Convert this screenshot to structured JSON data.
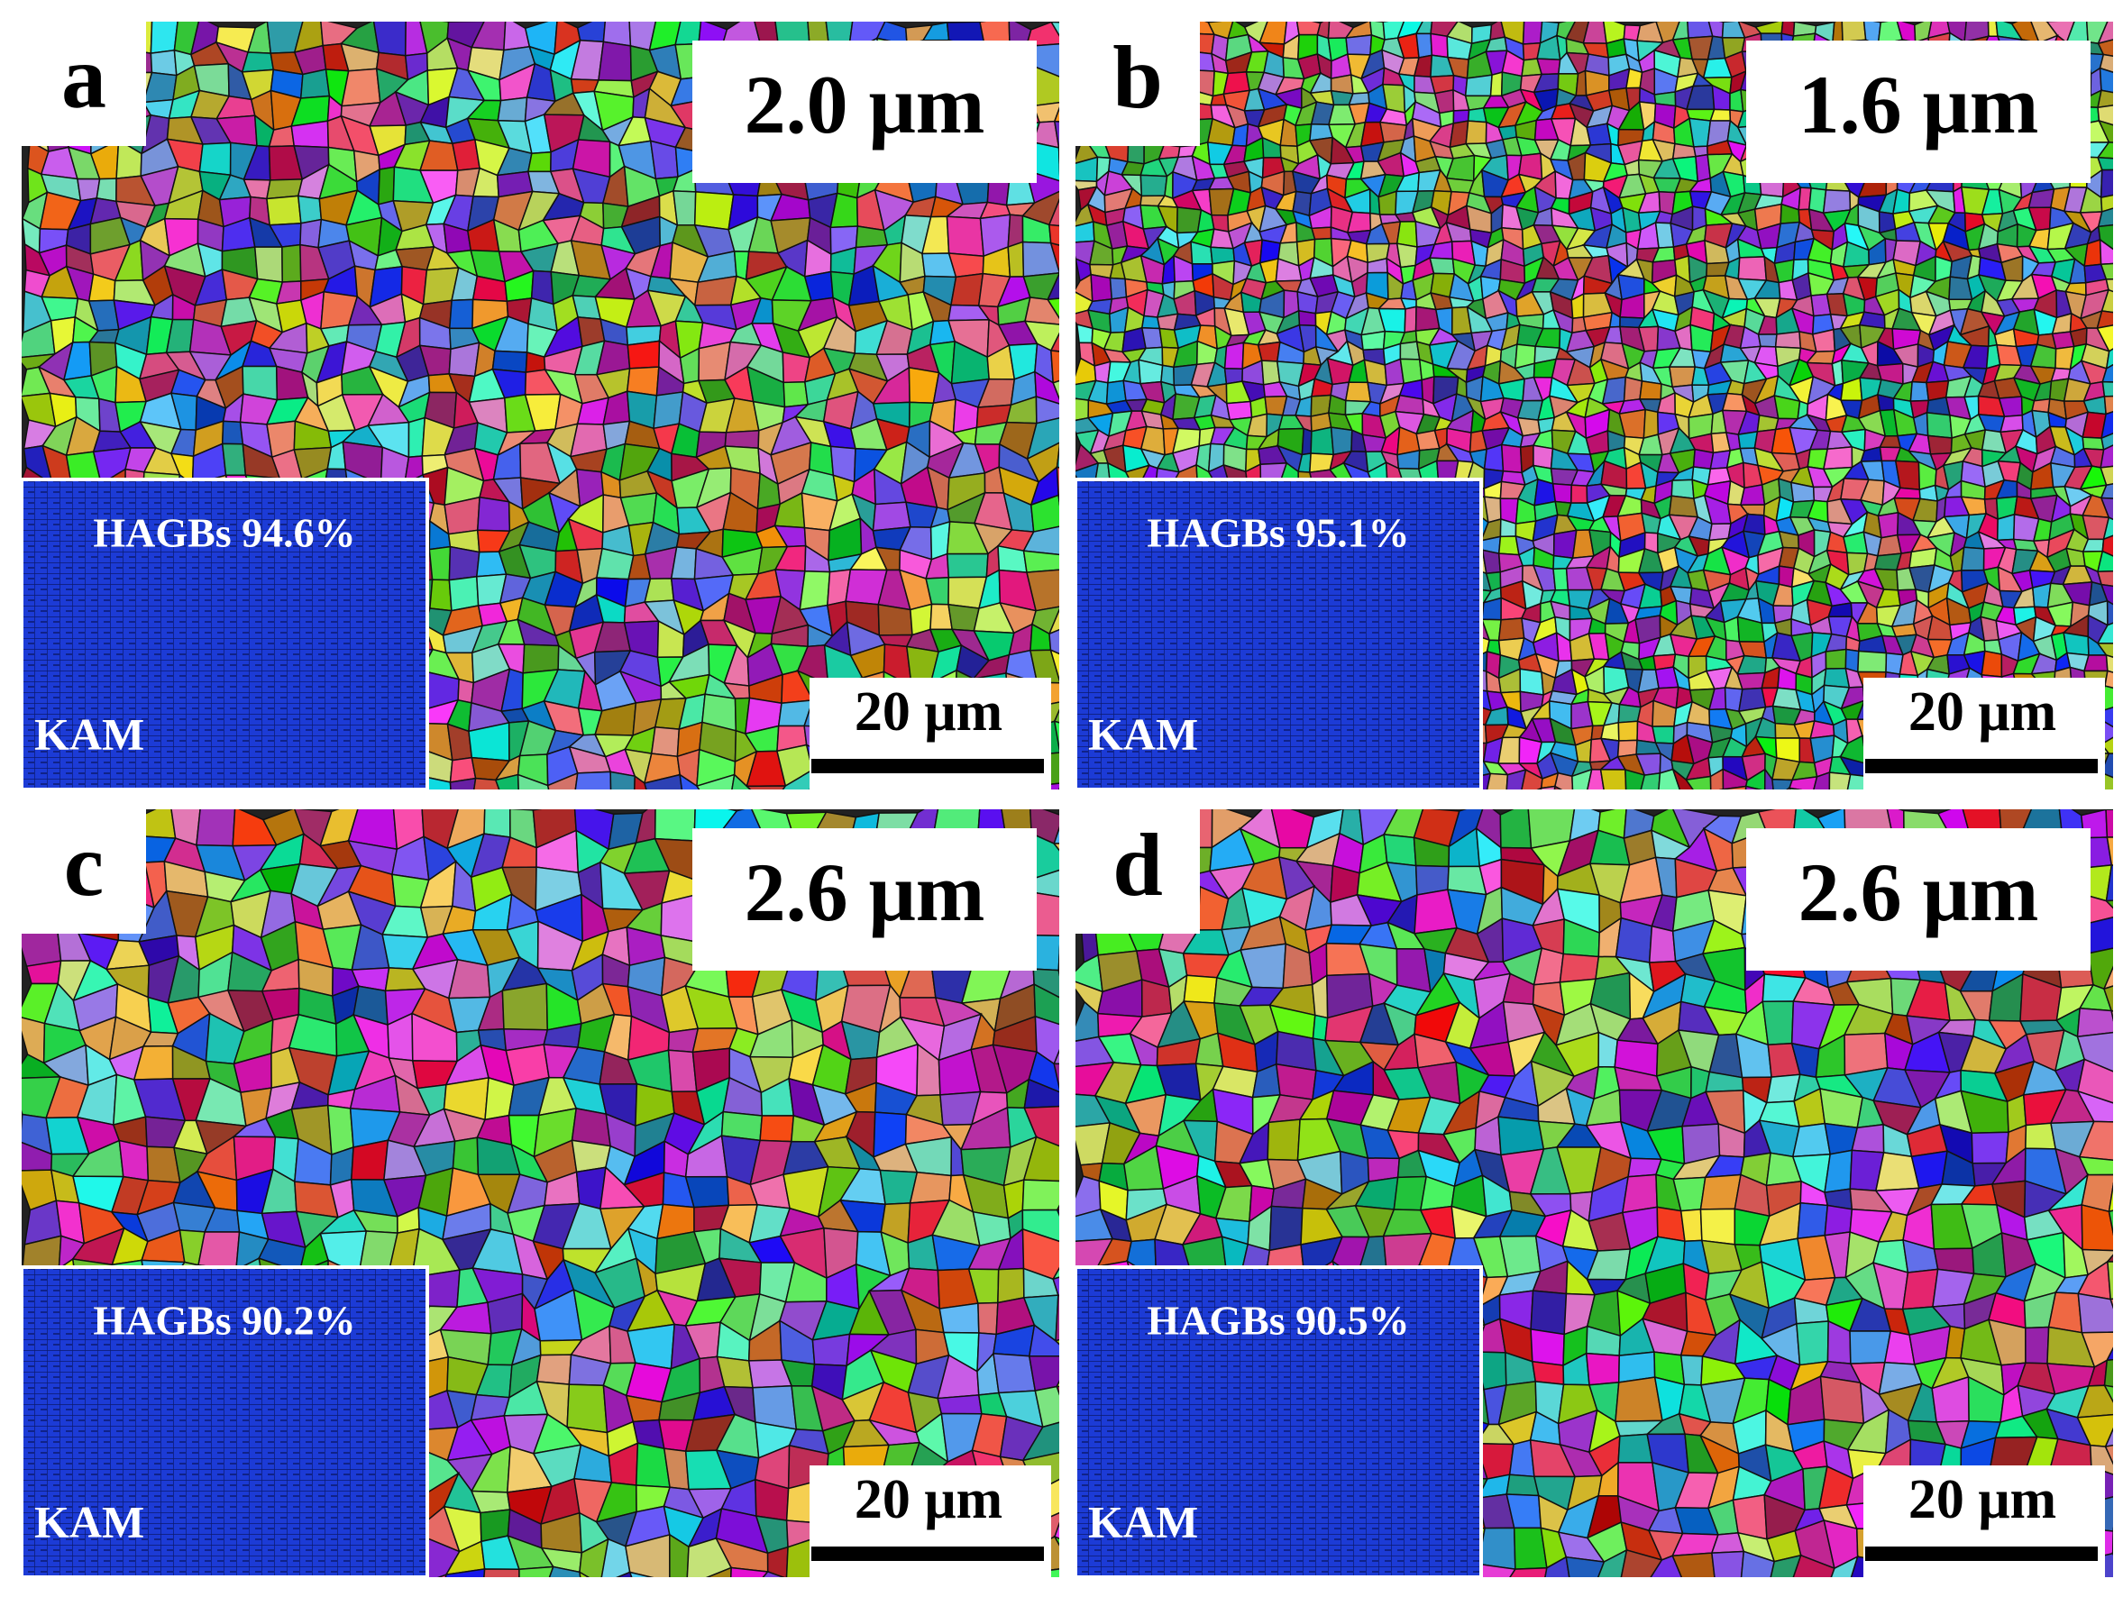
{
  "panels": [
    {
      "label": "a",
      "grain_size": "2.0 μm",
      "hagbs": "HAGBs 94.6%",
      "inset_label": "KAM",
      "scale_bar": "20 μm"
    },
    {
      "label": "b",
      "grain_size": "1.6 μm",
      "hagbs": "HAGBs 95.1%",
      "inset_label": "KAM",
      "scale_bar": "20 μm"
    },
    {
      "label": "c",
      "grain_size": "2.6 μm",
      "hagbs": "HAGBs 90.2%",
      "inset_label": "KAM",
      "scale_bar": "20 μm"
    },
    {
      "label": "d",
      "grain_size": "2.6 μm",
      "hagbs": "HAGBs 90.5%",
      "inset_label": "KAM",
      "scale_bar": "20 μm"
    }
  ]
}
